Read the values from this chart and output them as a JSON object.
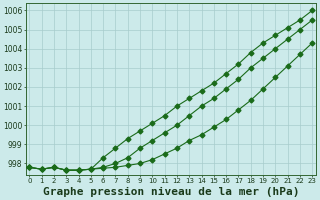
{
  "title": "Graphe pression niveau de la mer (hPa)",
  "x": [
    0,
    1,
    2,
    3,
    4,
    5,
    6,
    7,
    8,
    9,
    10,
    11,
    12,
    13,
    14,
    15,
    16,
    17,
    18,
    19,
    20,
    21,
    22,
    23
  ],
  "line1": [
    997.8,
    997.7,
    997.8,
    997.65,
    997.65,
    997.7,
    997.75,
    997.8,
    997.9,
    998.0,
    998.2,
    998.5,
    998.8,
    999.2,
    999.5,
    999.9,
    1000.3,
    1000.8,
    1001.3,
    1001.9,
    1002.5,
    1003.1,
    1003.7,
    1004.3
  ],
  "line2": [
    997.8,
    997.7,
    997.8,
    997.65,
    997.65,
    997.7,
    997.8,
    998.0,
    998.3,
    998.8,
    999.2,
    999.6,
    1000.0,
    1000.5,
    1001.0,
    1001.4,
    1001.9,
    1002.4,
    1003.0,
    1003.5,
    1004.0,
    1004.5,
    1005.0,
    1005.5
  ],
  "line3": [
    997.8,
    997.7,
    997.8,
    997.65,
    997.65,
    997.7,
    998.3,
    998.8,
    999.3,
    999.7,
    1000.1,
    1000.5,
    1001.0,
    1001.4,
    1001.8,
    1002.2,
    1002.7,
    1003.2,
    1003.8,
    1004.3,
    1004.7,
    1005.1,
    1005.5,
    1006.0
  ],
  "line_color": "#1a6b1a",
  "bg_color": "#cceaea",
  "grid_color": "#a8cccc",
  "ylim": [
    997.4,
    1006.4
  ],
  "yticks": [
    998,
    999,
    1000,
    1001,
    1002,
    1003,
    1004,
    1005,
    1006
  ],
  "xlim": [
    -0.3,
    23.3
  ],
  "title_fontsize": 8
}
